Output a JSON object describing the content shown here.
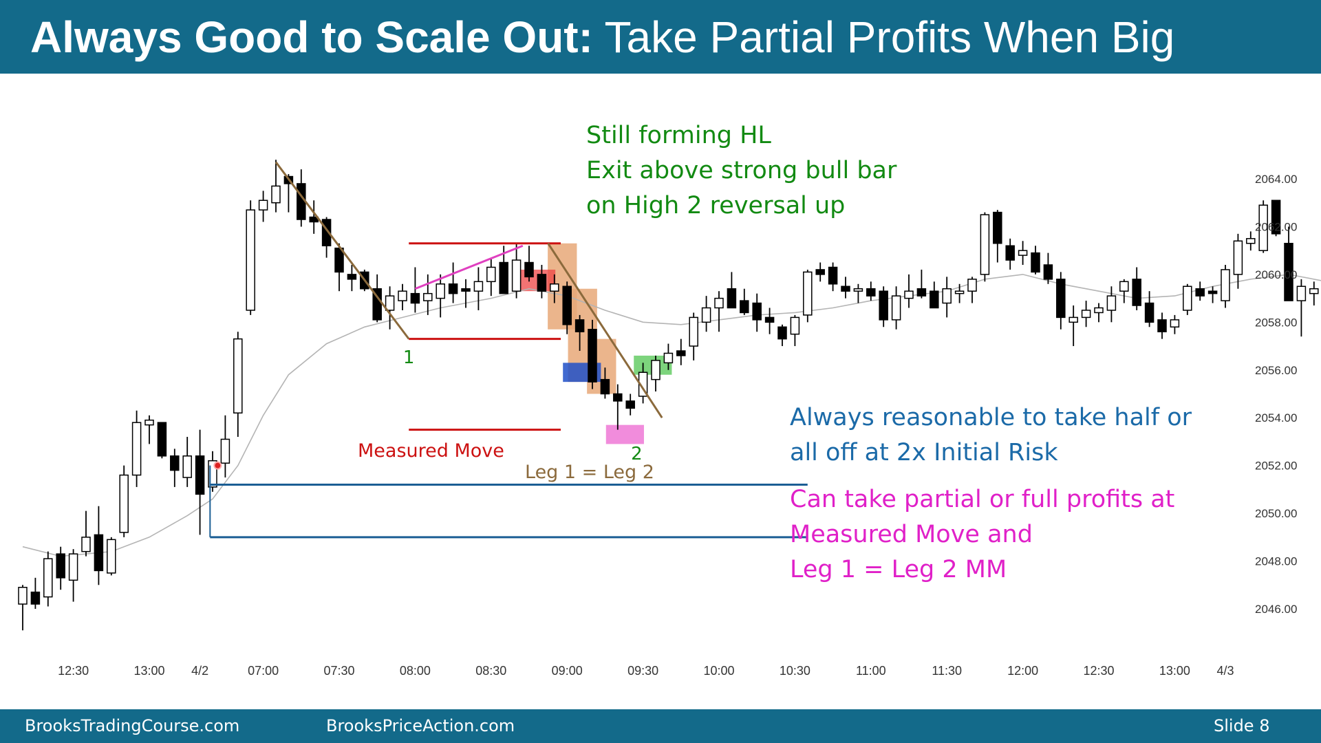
{
  "header": {
    "title_bold": "Always Good to Scale Out:",
    "title_rest": "Take Partial Profits When Big"
  },
  "footer": {
    "left": "BrooksTradingCourse.com",
    "middle": "BrooksPriceAction.com",
    "slide": "Slide  8"
  },
  "colors": {
    "header_bg": "#136a8a",
    "bull_bar": "#ffffff",
    "bear_bar": "#000000",
    "ema": "#b4b4b4",
    "measured_move": "#cc1111",
    "scale_out_lines": "#1b5e94",
    "trendline": "#8b6a3c",
    "wedge_line": "#e040c0",
    "green_text": "#128a12",
    "blue_text": "#1b6aa8",
    "magenta_text": "#e020c8"
  },
  "annotations": {
    "green": [
      "Still forming HL",
      "Exit above strong bull bar",
      "on High 2 reversal up"
    ],
    "blue": [
      "Always reasonable to take half or",
      "all off at 2x Initial Risk"
    ],
    "magenta": [
      "Can take partial or full profits at",
      "Measured Move and",
      "Leg 1 = Leg 2 MM"
    ],
    "labels": {
      "leg1": "1",
      "leg2": "2",
      "measured_move": "Measured Move",
      "leg_equal": "Leg 1 = Leg 2"
    }
  },
  "chart_data": {
    "type": "candlestick",
    "y_axis": {
      "ticks": [
        "2064.00",
        "2062.00",
        "2060.00",
        "2058.00",
        "2056.00",
        "2054.00",
        "2052.00",
        "2050.00",
        "2048.00",
        "2046.00"
      ],
      "ylim": [
        2045.2,
        2064.8
      ]
    },
    "x_axis": {
      "ticks": [
        {
          "label": "12:30",
          "bar": 4
        },
        {
          "label": "13:00",
          "bar": 10
        },
        {
          "label": "4/2",
          "bar": 14
        },
        {
          "label": "07:00",
          "bar": 19
        },
        {
          "label": "07:30",
          "bar": 25
        },
        {
          "label": "08:00",
          "bar": 31
        },
        {
          "label": "08:30",
          "bar": 37
        },
        {
          "label": "09:00",
          "bar": 43
        },
        {
          "label": "09:30",
          "bar": 49
        },
        {
          "label": "10:00",
          "bar": 55
        },
        {
          "label": "10:30",
          "bar": 61
        },
        {
          "label": "11:00",
          "bar": 67
        },
        {
          "label": "11:30",
          "bar": 73
        },
        {
          "label": "12:00",
          "bar": 79
        },
        {
          "label": "12:30",
          "bar": 85
        },
        {
          "label": "13:00",
          "bar": 91
        },
        {
          "label": "4/3",
          "bar": 95
        }
      ]
    },
    "bars": [
      [
        2046.2,
        2047.0,
        2045.1,
        2046.9
      ],
      [
        2046.7,
        2047.3,
        2046.0,
        2046.2
      ],
      [
        2046.5,
        2048.4,
        2046.1,
        2048.1
      ],
      [
        2048.3,
        2048.6,
        2046.8,
        2047.3
      ],
      [
        2047.2,
        2048.5,
        2046.3,
        2048.3
      ],
      [
        2048.4,
        2050.1,
        2048.2,
        2049.0
      ],
      [
        2049.1,
        2050.3,
        2047.0,
        2047.6
      ],
      [
        2047.5,
        2049.0,
        2047.4,
        2048.9
      ],
      [
        2049.2,
        2052.0,
        2049.0,
        2051.6
      ],
      [
        2051.6,
        2054.3,
        2051.1,
        2053.8
      ],
      [
        2053.7,
        2054.1,
        2052.9,
        2053.9
      ],
      [
        2053.8,
        2053.8,
        2052.3,
        2052.4
      ],
      [
        2052.4,
        2052.7,
        2051.1,
        2051.8
      ],
      [
        2051.5,
        2053.2,
        2051.1,
        2052.4
      ],
      [
        2052.4,
        2053.5,
        2049.1,
        2050.8
      ],
      [
        2051.1,
        2052.6,
        2050.9,
        2052.2
      ],
      [
        2052.1,
        2054.1,
        2051.5,
        2053.1
      ],
      [
        2054.2,
        2057.6,
        2053.2,
        2057.3
      ],
      [
        2058.5,
        2063.1,
        2058.3,
        2062.7
      ],
      [
        2062.7,
        2063.5,
        2062.2,
        2063.1
      ],
      [
        2063.0,
        2064.8,
        2062.6,
        2063.7
      ],
      [
        2064.1,
        2064.2,
        2062.6,
        2063.8
      ],
      [
        2063.8,
        2064.4,
        2062.0,
        2062.3
      ],
      [
        2062.4,
        2063.1,
        2061.7,
        2062.2
      ],
      [
        2062.3,
        2062.4,
        2060.7,
        2061.2
      ],
      [
        2061.1,
        2061.3,
        2059.3,
        2060.1
      ],
      [
        2060.0,
        2060.4,
        2059.3,
        2059.8
      ],
      [
        2060.1,
        2060.2,
        2059.3,
        2059.4
      ],
      [
        2059.4,
        2060.0,
        2058.0,
        2058.1
      ],
      [
        2058.5,
        2059.5,
        2057.7,
        2059.1
      ],
      [
        2058.9,
        2059.6,
        2058.5,
        2059.3
      ],
      [
        2059.2,
        2060.3,
        2058.4,
        2058.8
      ],
      [
        2058.9,
        2060.0,
        2058.3,
        2059.2
      ],
      [
        2059.0,
        2060.0,
        2058.2,
        2059.6
      ],
      [
        2059.6,
        2060.5,
        2058.8,
        2059.2
      ],
      [
        2059.4,
        2059.8,
        2058.6,
        2059.3
      ],
      [
        2059.3,
        2060.3,
        2058.5,
        2059.7
      ],
      [
        2059.7,
        2060.7,
        2059.1,
        2060.3
      ],
      [
        2060.5,
        2061.2,
        2059.4,
        2059.2
      ],
      [
        2059.3,
        2061.3,
        2059.0,
        2060.6
      ],
      [
        2060.5,
        2061.2,
        2059.7,
        2059.9
      ],
      [
        2060.0,
        2060.4,
        2059.0,
        2059.3
      ],
      [
        2059.3,
        2060.0,
        2058.8,
        2059.6
      ],
      [
        2059.5,
        2059.7,
        2057.5,
        2057.9
      ],
      [
        2058.1,
        2058.3,
        2056.8,
        2057.6
      ],
      [
        2057.7,
        2058.1,
        2055.2,
        2055.5
      ],
      [
        2055.6,
        2056.1,
        2054.8,
        2055.0
      ],
      [
        2055.0,
        2055.4,
        2053.5,
        2054.7
      ],
      [
        2054.7,
        2055.0,
        2054.1,
        2054.4
      ],
      [
        2054.9,
        2056.3,
        2054.6,
        2055.9
      ],
      [
        2055.6,
        2056.6,
        2055.1,
        2056.4
      ],
      [
        2056.3,
        2057.1,
        2056.0,
        2056.7
      ],
      [
        2056.8,
        2057.3,
        2056.2,
        2056.6
      ],
      [
        2057.0,
        2058.4,
        2056.4,
        2058.2
      ],
      [
        2058.0,
        2059.1,
        2057.6,
        2058.6
      ],
      [
        2058.6,
        2059.3,
        2057.6,
        2059.0
      ],
      [
        2059.4,
        2060.1,
        2058.7,
        2058.6
      ],
      [
        2058.9,
        2059.4,
        2058.3,
        2058.4
      ],
      [
        2058.8,
        2059.2,
        2057.6,
        2058.1
      ],
      [
        2058.2,
        2058.6,
        2057.5,
        2058.0
      ],
      [
        2057.8,
        2057.9,
        2057.0,
        2057.3
      ],
      [
        2057.5,
        2058.3,
        2057.0,
        2058.2
      ],
      [
        2058.3,
        2060.2,
        2058.0,
        2060.1
      ],
      [
        2060.2,
        2060.5,
        2059.7,
        2060.0
      ],
      [
        2060.3,
        2060.5,
        2059.3,
        2059.6
      ],
      [
        2059.5,
        2059.9,
        2059.0,
        2059.3
      ],
      [
        2059.3,
        2059.6,
        2058.8,
        2059.4
      ],
      [
        2059.4,
        2059.7,
        2058.9,
        2059.1
      ],
      [
        2059.3,
        2059.5,
        2057.8,
        2058.1
      ],
      [
        2058.1,
        2059.5,
        2057.7,
        2059.1
      ],
      [
        2059.0,
        2060.0,
        2058.6,
        2059.3
      ],
      [
        2059.4,
        2060.2,
        2059.0,
        2059.1
      ],
      [
        2059.3,
        2059.7,
        2058.7,
        2058.6
      ],
      [
        2058.8,
        2059.9,
        2058.2,
        2059.4
      ],
      [
        2059.2,
        2059.6,
        2058.8,
        2059.3
      ],
      [
        2059.3,
        2059.9,
        2058.8,
        2059.8
      ],
      [
        2060.0,
        2062.6,
        2059.7,
        2062.5
      ],
      [
        2062.6,
        2062.7,
        2060.5,
        2061.3
      ],
      [
        2061.2,
        2061.5,
        2060.2,
        2060.6
      ],
      [
        2060.8,
        2061.4,
        2060.4,
        2061.0
      ],
      [
        2060.9,
        2061.2,
        2060.0,
        2060.1
      ],
      [
        2060.4,
        2060.9,
        2059.6,
        2059.8
      ],
      [
        2059.8,
        2060.1,
        2057.7,
        2058.2
      ],
      [
        2058.0,
        2058.7,
        2057.0,
        2058.2
      ],
      [
        2058.2,
        2058.9,
        2057.8,
        2058.5
      ],
      [
        2058.4,
        2058.8,
        2058.0,
        2058.6
      ],
      [
        2058.5,
        2059.5,
        2058.0,
        2059.1
      ],
      [
        2059.3,
        2059.8,
        2058.8,
        2059.7
      ],
      [
        2059.8,
        2060.3,
        2058.5,
        2058.7
      ],
      [
        2058.8,
        2059.3,
        2057.8,
        2058.0
      ],
      [
        2058.1,
        2058.4,
        2057.3,
        2057.6
      ],
      [
        2057.8,
        2058.3,
        2057.5,
        2058.1
      ],
      [
        2058.5,
        2059.6,
        2058.3,
        2059.5
      ],
      [
        2059.4,
        2059.7,
        2058.9,
        2059.1
      ],
      [
        2059.3,
        2059.5,
        2058.8,
        2059.2
      ],
      [
        2058.9,
        2060.4,
        2058.6,
        2060.2
      ],
      [
        2060.0,
        2061.7,
        2059.4,
        2061.4
      ],
      [
        2061.3,
        2061.8,
        2061.0,
        2061.5
      ],
      [
        2061.0,
        2063.1,
        2060.9,
        2062.9
      ],
      [
        2063.1,
        2063.1,
        2061.6,
        2061.7
      ],
      [
        2061.3,
        2062.0,
        2058.9,
        2058.9
      ],
      [
        2058.9,
        2059.8,
        2057.4,
        2059.5
      ],
      [
        2059.2,
        2059.7,
        2058.7,
        2059.4
      ],
      [
        2059.4,
        2060.2,
        2058.0,
        2059.9
      ]
    ],
    "ema": [
      [
        0,
        2048.6
      ],
      [
        3,
        2048.2
      ],
      [
        7,
        2048.4
      ],
      [
        10,
        2049.0
      ],
      [
        13,
        2049.9
      ],
      [
        15,
        2050.6
      ],
      [
        17,
        2052.0
      ],
      [
        19,
        2054.1
      ],
      [
        21,
        2055.8
      ],
      [
        24,
        2057.1
      ],
      [
        27,
        2057.8
      ],
      [
        30,
        2058.2
      ],
      [
        33,
        2058.6
      ],
      [
        37,
        2059.0
      ],
      [
        40,
        2059.4
      ],
      [
        43,
        2059.1
      ],
      [
        46,
        2058.5
      ],
      [
        49,
        2058.0
      ],
      [
        52,
        2057.9
      ],
      [
        55,
        2058.1
      ],
      [
        58,
        2058.3
      ],
      [
        61,
        2058.4
      ],
      [
        64,
        2058.6
      ],
      [
        67,
        2058.9
      ],
      [
        70,
        2059.1
      ],
      [
        73,
        2059.3
      ],
      [
        76,
        2059.8
      ],
      [
        79,
        2060.0
      ],
      [
        82,
        2059.6
      ],
      [
        85,
        2059.3
      ],
      [
        88,
        2059.0
      ],
      [
        91,
        2059.1
      ],
      [
        94,
        2059.5
      ],
      [
        97,
        2059.8
      ],
      [
        100,
        2060.0
      ],
      [
        103,
        2059.7
      ]
    ],
    "markers": {
      "measured_move_upper": {
        "from_bar": 30.5,
        "to_bar": 42.5,
        "y": 2061.3
      },
      "measured_move_mid": {
        "from_bar": 30.5,
        "to_bar": 42.5,
        "y": 2057.3
      },
      "measured_move_target": {
        "from_bar": 30.5,
        "to_bar": 42.5,
        "y": 2053.5
      },
      "scale_out_upper": {
        "from_bar": 14.8,
        "to_bar": 62,
        "y": 2051.2
      },
      "scale_out_lower": {
        "from_bar": 14.8,
        "to_bar": 62,
        "y": 2049.0
      },
      "trendline_leg1": [
        [
          20.0,
          2064.7
        ],
        [
          30.5,
          2057.3
        ]
      ],
      "trendline_leg2": [
        [
          41.5,
          2061.3
        ],
        [
          50.5,
          2054.0
        ]
      ],
      "wedge_line": [
        [
          31.0,
          2059.4
        ],
        [
          39.5,
          2061.2
        ]
      ],
      "leg1_label_bar": 30.5,
      "leg2_label_bar": 48.5
    }
  }
}
